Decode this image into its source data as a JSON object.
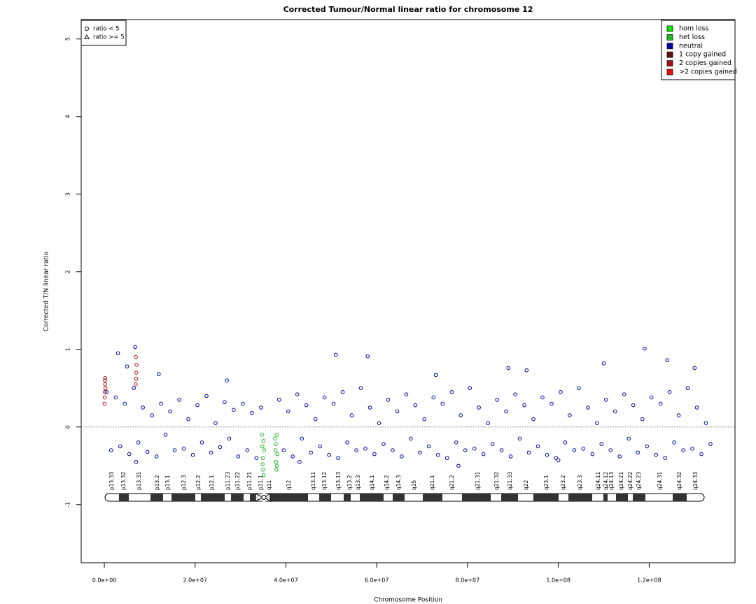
{
  "chart_data": {
    "type": "scatter",
    "title": "Corrected Tumour/Normal linear ratio for chromosome  12",
    "x_label": "Chromosome Position",
    "y_label": "Corrected T/N linear ratio",
    "xlim": [
      -5090000.0,
      138900000.0
    ],
    "ylim": [
      -1.75,
      5.25
    ],
    "xticks": [
      {
        "value": 0,
        "label": "0.0e+00"
      },
      {
        "value": 20000000.0,
        "label": "2.0e+07"
      },
      {
        "value": 40000000.0,
        "label": "4.0e+07"
      },
      {
        "value": 60000000.0,
        "label": "6.0e+07"
      },
      {
        "value": 80000000.0,
        "label": "8.0e+07"
      },
      {
        "value": 100000000.0,
        "label": "1.0e+08"
      },
      {
        "value": 120000000.0,
        "label": "1.2e+08"
      }
    ],
    "yticks": [
      -1,
      0,
      1,
      2,
      3,
      4,
      5
    ],
    "reference_line": 0,
    "shape_legend": [
      {
        "label": "ratio < 5",
        "shape": "circle"
      },
      {
        "label": "ratio >= 5",
        "shape": "triangle"
      }
    ],
    "series": [
      {
        "name": "hom loss",
        "color": "#00ee00",
        "x": [],
        "values": []
      },
      {
        "name": "het loss",
        "color": "#22bb22",
        "x": [
          34700000.0,
          34800000.0,
          34900000.0,
          35000000.0,
          35100000.0,
          35200000.0,
          34850000.0,
          35050000.0,
          37600000.0,
          37700000.0,
          37800000.0,
          37900000.0,
          38000000.0,
          38100000.0,
          37750000.0,
          37950000.0
        ],
        "values": [
          -0.1,
          -0.25,
          -0.4,
          -0.55,
          -0.62,
          -0.3,
          -0.48,
          -0.18,
          -0.15,
          -0.3,
          -0.45,
          -0.55,
          -0.5,
          -0.35,
          -0.22,
          -0.1
        ]
      },
      {
        "name": "neutral",
        "color": "#0000aa",
        "x": [
          500000.0,
          1500000.0,
          2500000.0,
          3500000.0,
          4500000.0,
          5500000.0,
          6500000.0,
          7500000.0,
          8500000.0,
          9500000.0,
          10500000.0,
          11500000.0,
          12500000.0,
          13500000.0,
          14500000.0,
          15500000.0,
          16500000.0,
          17500000.0,
          18500000.0,
          19500000.0,
          20500000.0,
          21500000.0,
          22500000.0,
          23500000.0,
          24500000.0,
          25500000.0,
          26500000.0,
          27500000.0,
          28500000.0,
          29500000.0,
          30500000.0,
          31500000.0,
          32500000.0,
          33500000.0,
          34500000.0,
          38500000.0,
          39500000.0,
          40500000.0,
          41500000.0,
          42500000.0,
          43500000.0,
          44500000.0,
          45500000.0,
          46500000.0,
          47500000.0,
          48500000.0,
          49500000.0,
          50500000.0,
          51500000.0,
          52500000.0,
          53500000.0,
          54500000.0,
          55500000.0,
          56500000.0,
          57500000.0,
          58500000.0,
          59500000.0,
          60500000.0,
          61500000.0,
          62500000.0,
          63500000.0,
          64500000.0,
          65500000.0,
          66500000.0,
          67500000.0,
          68500000.0,
          69500000.0,
          70500000.0,
          71500000.0,
          72500000.0,
          73500000.0,
          74500000.0,
          75500000.0,
          76500000.0,
          77500000.0,
          78500000.0,
          79500000.0,
          80500000.0,
          81500000.0,
          82500000.0,
          83500000.0,
          84500000.0,
          85500000.0,
          86500000.0,
          87500000.0,
          88500000.0,
          89500000.0,
          90500000.0,
          91500000.0,
          92500000.0,
          93500000.0,
          94500000.0,
          95500000.0,
          96500000.0,
          97500000.0,
          98500000.0,
          99500000.0,
          100500000.0,
          101500000.0,
          102500000.0,
          103500000.0,
          104500000.0,
          105500000.0,
          106500000.0,
          107500000.0,
          108500000.0,
          109500000.0,
          110500000.0,
          111500000.0,
          112500000.0,
          113500000.0,
          114500000.0,
          115500000.0,
          116500000.0,
          117500000.0,
          118500000.0,
          119500000.0,
          120500000.0,
          121500000.0,
          122500000.0,
          123500000.0,
          124500000.0,
          125500000.0,
          126500000.0,
          127500000.0,
          128500000.0,
          129500000.0,
          130500000.0,
          131500000.0,
          132500000.0,
          133500000.0,
          3000000.0,
          5000000.0,
          6800000.0,
          12000000.0,
          27000000.0,
          51000000.0,
          58000000.0,
          73000000.0,
          89000000.0,
          93000000.0,
          110000000.0,
          119000000.0,
          124000000.0,
          130000000.0,
          7000000.0,
          43000000.0,
          100000000.0,
          78000000.0
        ],
        "values": [
          0.45,
          -0.3,
          0.38,
          -0.25,
          0.3,
          -0.35,
          0.5,
          -0.2,
          0.25,
          -0.32,
          0.15,
          -0.38,
          0.3,
          -0.1,
          0.2,
          -0.3,
          0.35,
          -0.28,
          0.1,
          -0.36,
          0.28,
          -0.2,
          0.4,
          -0.33,
          0.05,
          -0.26,
          0.32,
          -0.15,
          0.22,
          -0.38,
          0.3,
          -0.3,
          0.18,
          -0.4,
          0.25,
          0.35,
          -0.3,
          0.2,
          -0.38,
          0.42,
          -0.15,
          0.28,
          -0.33,
          0.1,
          -0.25,
          0.38,
          -0.36,
          0.3,
          -0.4,
          0.45,
          -0.2,
          0.15,
          -0.3,
          0.5,
          -0.28,
          0.25,
          -0.35,
          0.05,
          -0.22,
          0.35,
          -0.3,
          0.2,
          -0.38,
          0.42,
          -0.15,
          0.28,
          -0.33,
          0.1,
          -0.25,
          0.38,
          -0.36,
          0.3,
          -0.4,
          0.45,
          -0.2,
          0.15,
          -0.3,
          0.5,
          -0.28,
          0.25,
          -0.35,
          0.05,
          -0.22,
          0.35,
          -0.3,
          0.2,
          -0.38,
          0.42,
          -0.15,
          0.28,
          -0.33,
          0.1,
          -0.25,
          0.38,
          -0.36,
          0.3,
          -0.4,
          0.45,
          -0.2,
          0.15,
          -0.3,
          0.5,
          -0.28,
          0.25,
          -0.35,
          0.05,
          -0.22,
          0.35,
          -0.3,
          0.2,
          -0.38,
          0.42,
          -0.15,
          0.28,
          -0.33,
          0.1,
          -0.25,
          0.38,
          -0.36,
          0.3,
          -0.4,
          0.45,
          -0.2,
          0.15,
          -0.3,
          0.5,
          -0.28,
          0.25,
          -0.35,
          0.05,
          -0.22,
          0.95,
          0.78,
          1.03,
          0.68,
          0.6,
          0.93,
          0.91,
          0.67,
          0.76,
          0.73,
          0.82,
          1.01,
          0.86,
          0.76,
          -0.45,
          -0.45,
          -0.43,
          -0.5
        ]
      },
      {
        "name": "1 copy gained",
        "color": "#661111",
        "x": [],
        "values": []
      },
      {
        "name": "2 copies gained",
        "color": "#aa1111",
        "x": [
          50000.0,
          100000.0,
          150000.0,
          200000.0,
          250000.0,
          100000.0,
          200000.0,
          6900000.0,
          7000000.0,
          7100000.0,
          6950000.0,
          7050000.0
        ],
        "values": [
          0.3,
          0.45,
          0.6,
          0.63,
          0.5,
          0.38,
          0.55,
          0.55,
          0.62,
          0.8,
          0.9,
          0.7
        ]
      },
      {
        "name": ">2 copies gained",
        "color": "#ee1111",
        "x": [],
        "values": []
      }
    ],
    "ideogram": {
      "bands": [
        "p13.33",
        "p13.32",
        "p13.31",
        "p13.2",
        "p13.1",
        "p12.3",
        "p12.2",
        "p12.1",
        "p11.23",
        "p11.22",
        "p11.21",
        "p11.1",
        "q11",
        "q12",
        "q13.11",
        "q13.12",
        "q13.13",
        "q13.2",
        "q13.3",
        "q14.1",
        "q14.2",
        "q14.3",
        "q15",
        "q21.1",
        "q21.2",
        "q21.31",
        "q21.32",
        "q21.33",
        "q22",
        "q23.1",
        "q23.2",
        "q23.3",
        "q24.11",
        "q24.12",
        "q24.13",
        "q24.21",
        "q24.22",
        "q24.23",
        "q24.31",
        "q24.32",
        "q24.33"
      ]
    }
  }
}
